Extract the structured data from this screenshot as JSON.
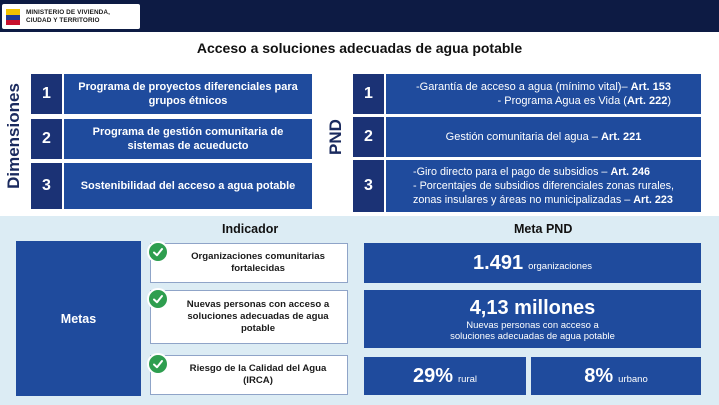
{
  "header": {
    "logo_line1": "MINISTERIO DE VIVIENDA,",
    "logo_line2": "CIUDAD Y TERRITORIO"
  },
  "title": "Acceso a soluciones adecuadas de agua potable",
  "labels": {
    "dimensiones": "Dimensiones",
    "pnd": "PND"
  },
  "dimensiones": [
    {
      "num": "1",
      "text": "Programa de proyectos diferenciales para grupos étnicos"
    },
    {
      "num": "2",
      "text": "Programa de gestión comunitaria de sistemas de acueducto"
    },
    {
      "num": "3",
      "text": "Sostenibilidad del acceso a agua potable"
    }
  ],
  "pnd": [
    {
      "num": "1",
      "l1a": "-Garantía de acceso a agua (mínimo vital)– ",
      "l1b": "Art. 153",
      "l2a": "- Programa Agua es Vida (",
      "l2b": "Art. 222",
      "l2c": ")"
    },
    {
      "num": "2",
      "l1a": "Gestión comunitaria del agua – ",
      "l1b": "Art. 221"
    },
    {
      "num": "3",
      "l1a": "-Giro directo para el pago de subsidios – ",
      "l1b": "Art. 246",
      "l2a": "- Porcentajes de subsidios diferenciales zonas rurales,",
      "l3a": "zonas insulares y áreas no municipalizadas – ",
      "l3b": "Art. 223"
    }
  ],
  "indicador_header": "Indicador",
  "meta_header": "Meta PND",
  "metas_label": "Metas",
  "indicadores": [
    {
      "text": "Organizaciones comunitarias fortalecidas"
    },
    {
      "text": "Nuevas personas con acceso a soluciones adecuadas de agua potable"
    },
    {
      "text": "Riesgo de la Calidad del Agua (IRCA)"
    }
  ],
  "metas": {
    "m1_value": "1.491",
    "m1_unit": "organizaciones",
    "m2_value": "4,13 millones",
    "m2_desc_1": "Nuevas personas con acceso a",
    "m2_desc_2": "soluciones adecuadas de agua potable",
    "m3_value": "29%",
    "m3_unit": "rural",
    "m4_value": "8%",
    "m4_unit": "urbano"
  },
  "colors": {
    "accent": "#1f4b9d",
    "number_box": "#1b3275",
    "check": "#2e9e4f",
    "bottom_bg": "#dcecf4",
    "topbar": "#0d1b44"
  },
  "icons": {
    "check": "check-icon"
  }
}
